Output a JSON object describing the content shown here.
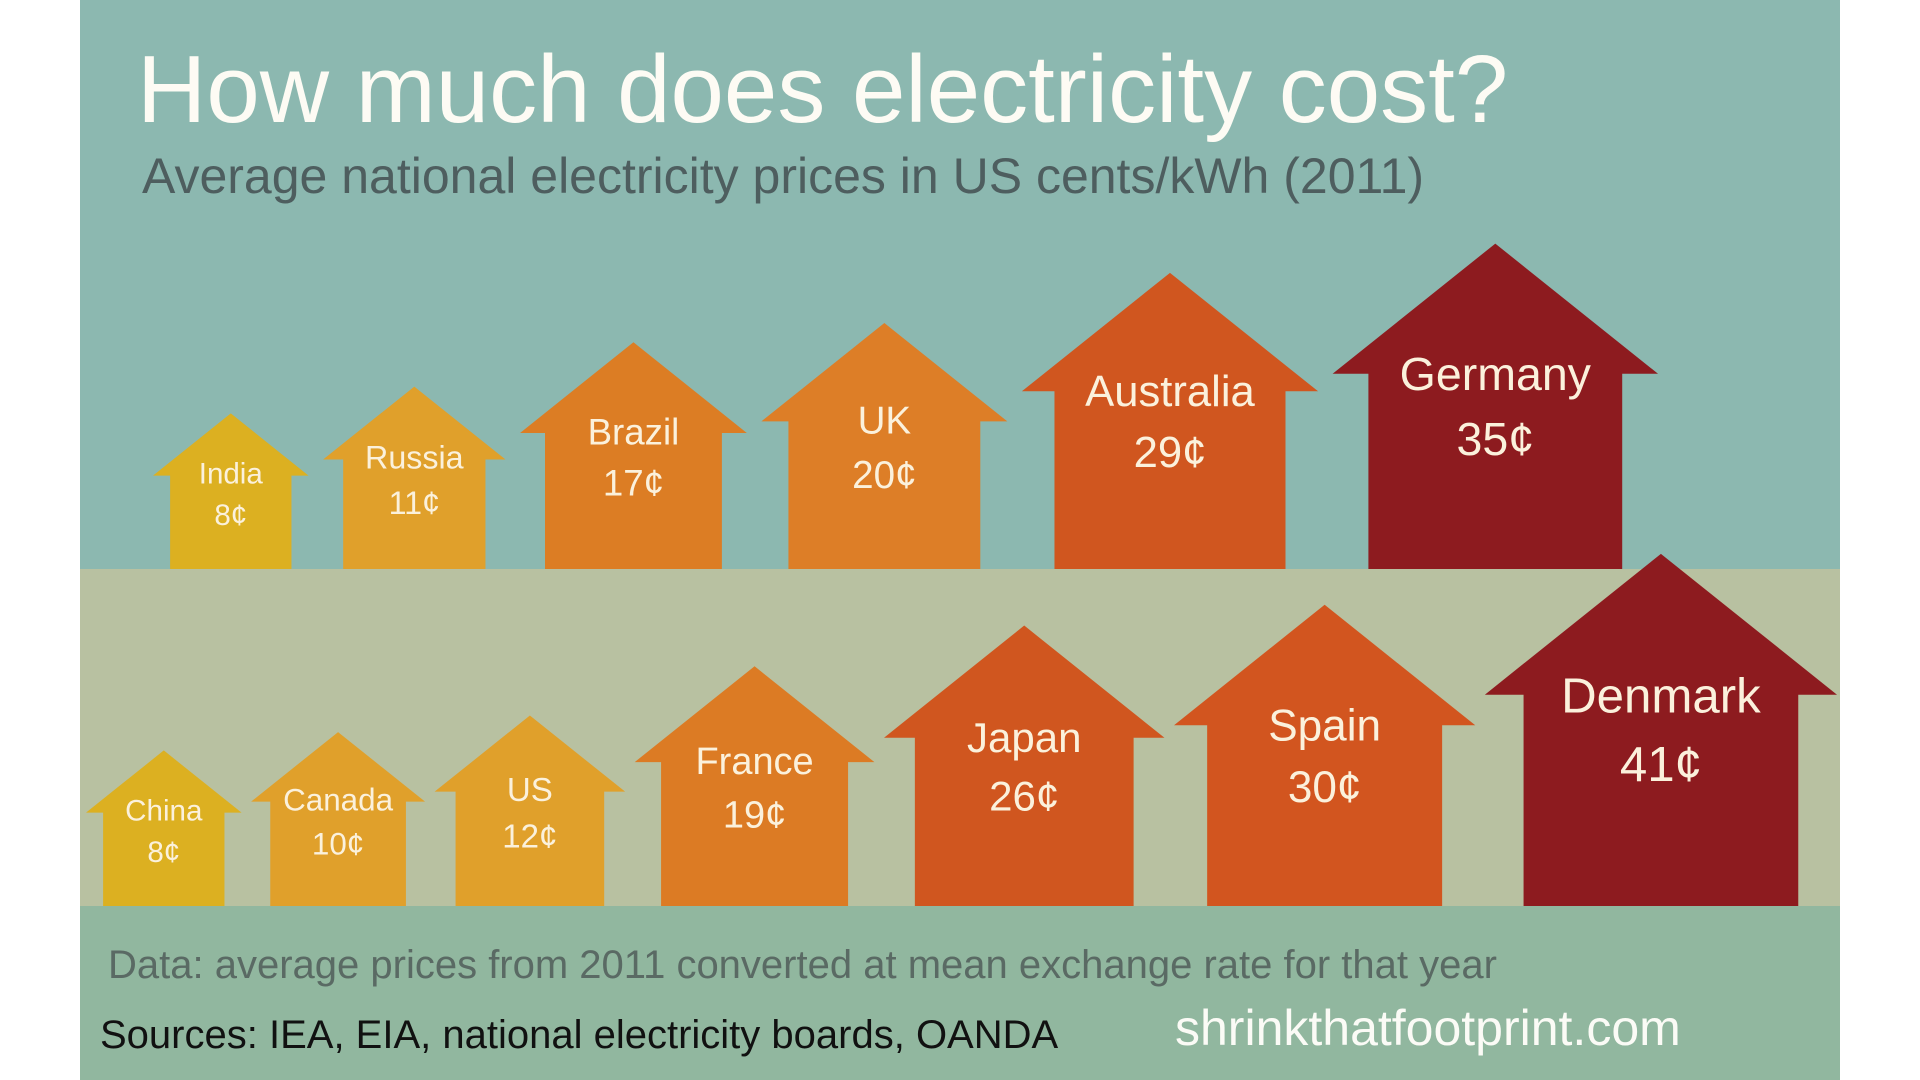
{
  "header": {
    "title": "How much does electricity cost?",
    "subtitle": "Average national electricity prices in US cents/kWh (2011)"
  },
  "chart_data": [
    {
      "type": "pictograph",
      "categories": [
        "India",
        "Russia",
        "Brazil",
        "UK",
        "Australia",
        "Germany"
      ],
      "values": [
        8,
        11,
        17,
        20,
        29,
        35
      ],
      "value_labels": [
        "8¢",
        "11¢",
        "17¢",
        "20¢",
        "29¢",
        "35¢"
      ],
      "colors": [
        "#dcb021",
        "#e0a02b",
        "#dc7d24",
        "#dd7e27",
        "#d0561f",
        "#8d1b1f"
      ]
    },
    {
      "type": "pictograph",
      "categories": [
        "China",
        "Canada",
        "US",
        "France",
        "Japan",
        "Spain",
        "Denmark"
      ],
      "values": [
        8,
        10,
        12,
        19,
        26,
        30,
        41
      ],
      "value_labels": [
        "8¢",
        "10¢",
        "12¢",
        "19¢",
        "26¢",
        "30¢",
        "41¢"
      ],
      "colors": [
        "#dcb021",
        "#e0a02b",
        "#e0a02b",
        "#dc7b24",
        "#d0561f",
        "#d2551f",
        "#8d1b1f"
      ]
    }
  ],
  "footer": {
    "note": "Data:  average prices from 2011 converted at mean exchange rate for that year",
    "sources": "Sources:  IEA, EIA, national electricity boards, OANDA",
    "site": "shrinkthatfootprint.com"
  }
}
